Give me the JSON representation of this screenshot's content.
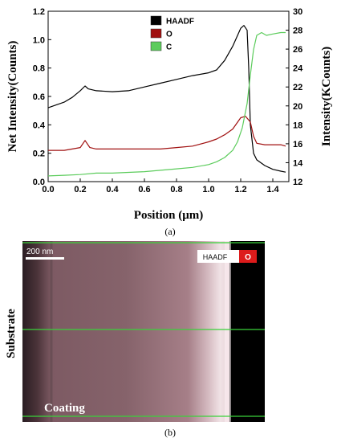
{
  "captions": {
    "a": "(a)",
    "b": "(b)"
  },
  "image_b": {
    "scalebar_label": "200 nm",
    "badge_haadf": "HAADF",
    "badge_o": "O",
    "label_substrate": "Substrate",
    "label_coating": "Coating"
  },
  "chart_data": {
    "type": "line",
    "xlabel": "Position (μm)",
    "ylabel": "Net Intensity(Counts)",
    "y2label": "Intensity(KCounts)",
    "xlim": [
      0.0,
      1.5
    ],
    "ylim": [
      0.0,
      1.2
    ],
    "y2lim": [
      12,
      30
    ],
    "xticks": [
      "0.0",
      "0.2",
      "0.4",
      "0.6",
      "0.8",
      "1.0",
      "1.2",
      "1.4"
    ],
    "yticks": [
      "0.0",
      "0.2",
      "0.4",
      "0.6",
      "0.8",
      "1.0",
      "1.2"
    ],
    "y2ticks": [
      "12",
      "14",
      "16",
      "18",
      "20",
      "22",
      "24",
      "26",
      "28",
      "30"
    ],
    "grid": false,
    "legend_position": "top-center",
    "series": [
      {
        "name": "HAADF",
        "color": "#000000",
        "axis": "right",
        "x": [
          0.0,
          0.05,
          0.1,
          0.15,
          0.2,
          0.23,
          0.25,
          0.3,
          0.4,
          0.5,
          0.6,
          0.7,
          0.8,
          0.9,
          1.0,
          1.05,
          1.1,
          1.15,
          1.2,
          1.22,
          1.24,
          1.25,
          1.26,
          1.28,
          1.3,
          1.35,
          1.4,
          1.45,
          1.48
        ],
        "values": [
          19.8,
          20.1,
          20.4,
          20.9,
          21.6,
          22.1,
          21.8,
          21.6,
          21.5,
          21.6,
          22.0,
          22.4,
          22.8,
          23.2,
          23.5,
          23.8,
          24.8,
          26.3,
          28.2,
          28.5,
          28.0,
          24.0,
          18.0,
          15.0,
          14.3,
          13.7,
          13.3,
          13.1,
          13.0
        ]
      },
      {
        "name": "O",
        "color": "#a01010",
        "axis": "left",
        "x": [
          0.0,
          0.1,
          0.2,
          0.23,
          0.26,
          0.3,
          0.4,
          0.5,
          0.6,
          0.7,
          0.8,
          0.9,
          1.0,
          1.05,
          1.1,
          1.15,
          1.2,
          1.23,
          1.26,
          1.28,
          1.3,
          1.35,
          1.4,
          1.45,
          1.48
        ],
        "values": [
          0.22,
          0.22,
          0.24,
          0.29,
          0.24,
          0.23,
          0.23,
          0.23,
          0.23,
          0.23,
          0.24,
          0.25,
          0.28,
          0.3,
          0.33,
          0.37,
          0.45,
          0.46,
          0.42,
          0.32,
          0.27,
          0.26,
          0.26,
          0.26,
          0.25
        ]
      },
      {
        "name": "C",
        "color": "#5ccc5c",
        "axis": "left",
        "x": [
          0.0,
          0.1,
          0.2,
          0.3,
          0.4,
          0.5,
          0.6,
          0.7,
          0.8,
          0.9,
          1.0,
          1.05,
          1.1,
          1.15,
          1.18,
          1.21,
          1.24,
          1.26,
          1.28,
          1.3,
          1.33,
          1.36,
          1.4,
          1.45,
          1.48
        ],
        "values": [
          0.04,
          0.045,
          0.05,
          0.06,
          0.06,
          0.065,
          0.07,
          0.08,
          0.09,
          0.1,
          0.12,
          0.14,
          0.17,
          0.22,
          0.28,
          0.38,
          0.55,
          0.75,
          0.93,
          1.03,
          1.05,
          1.03,
          1.04,
          1.05,
          1.05
        ]
      }
    ]
  }
}
